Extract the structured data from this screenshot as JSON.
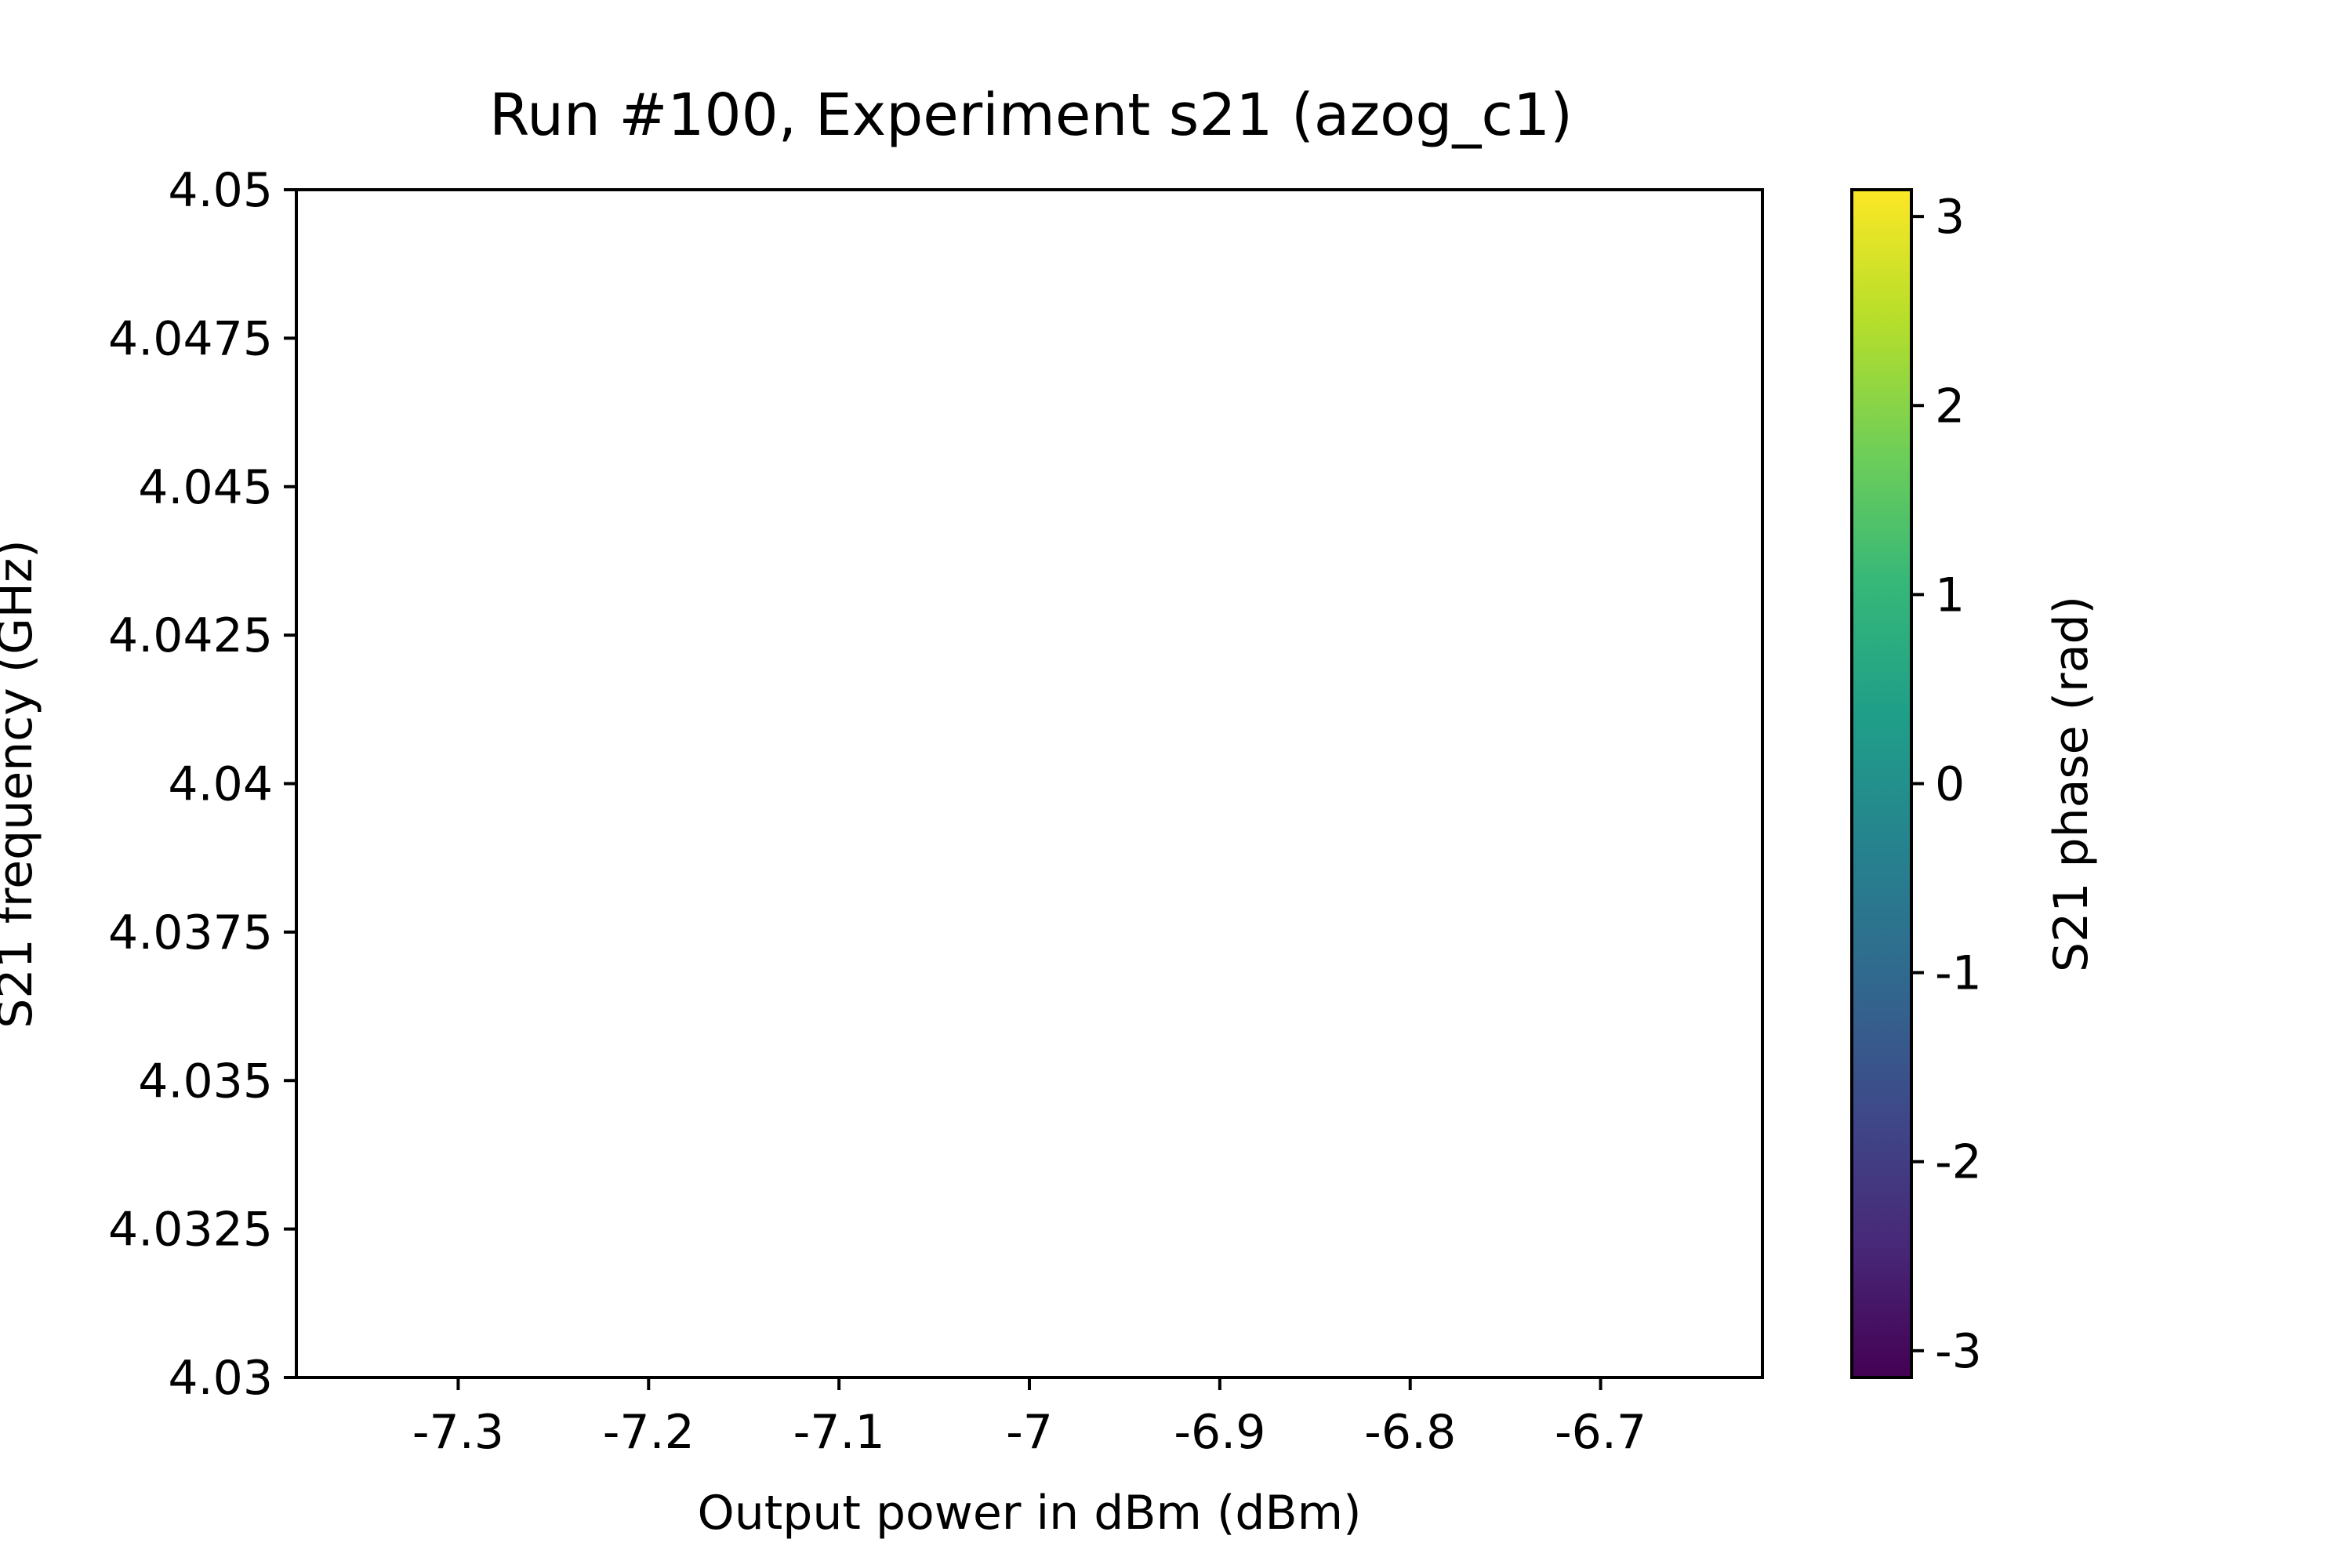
{
  "chart_data": {
    "type": "heatmap",
    "title": "Run #100, Experiment s21 (azog_c1)",
    "xlabel": "Output power in dBm (dBm)",
    "ylabel": "S21 frequency (GHz)",
    "xlim": [
      -7.385,
      -6.615
    ],
    "ylim": [
      4.03,
      4.05
    ],
    "x_ticks": [
      -7.3,
      -7.2,
      -7.1,
      -7.0,
      -6.9,
      -6.8,
      -6.7
    ],
    "x_tick_labels": [
      "-7.3",
      "-7.2",
      "-7.1",
      "-7",
      "-6.9",
      "-6.8",
      "-6.7"
    ],
    "y_ticks": [
      4.03,
      4.0325,
      4.035,
      4.0375,
      4.04,
      4.0425,
      4.045,
      4.0475,
      4.05
    ],
    "y_tick_labels": [
      "4.03",
      "4.0325",
      "4.035",
      "4.0375",
      "4.04",
      "4.0425",
      "4.045",
      "4.0475",
      "4.05"
    ],
    "values": [],
    "grid": false,
    "colorbar": {
      "label": "S21 phase (rad)",
      "colormap": "viridis",
      "range": [
        -3.14159,
        3.14159
      ],
      "ticks": [
        -3,
        -2,
        -1,
        0,
        1,
        2,
        3
      ],
      "tick_labels": [
        "-3",
        "-2",
        "-1",
        "0",
        "1",
        "2",
        "3"
      ],
      "colors": [
        "#440154",
        "#482878",
        "#3e4989",
        "#31688e",
        "#26828e",
        "#1f9e89",
        "#35b779",
        "#6ece58",
        "#b5de2b",
        "#fde725"
      ]
    }
  }
}
